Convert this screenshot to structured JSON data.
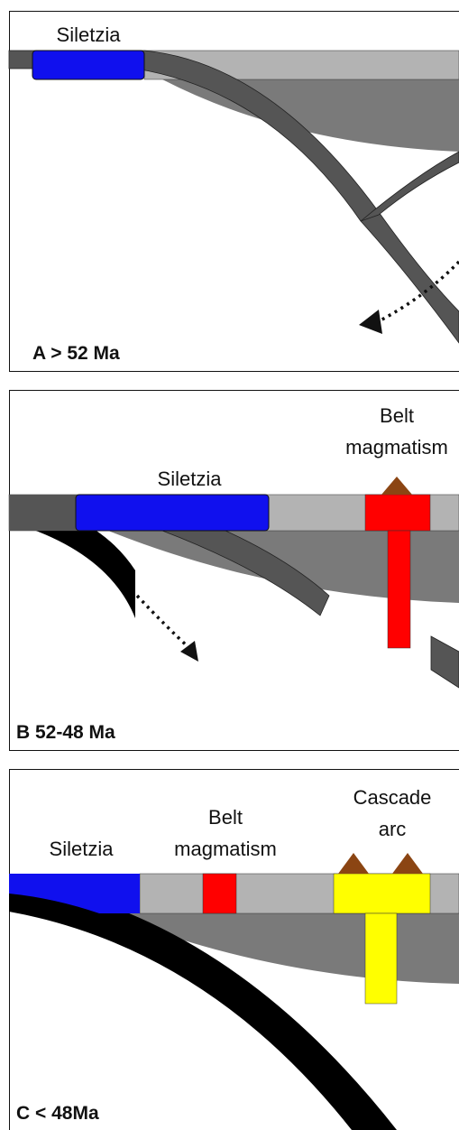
{
  "panels": [
    {
      "label": "A > 52 Ma",
      "blocks": [
        {
          "name": "Siletzia"
        }
      ]
    },
    {
      "label": "B 52-48 Ma",
      "blocks": [
        {
          "name": "Siletzia"
        },
        {
          "name_lines": [
            "Belt",
            "magmatism"
          ]
        }
      ]
    },
    {
      "label": "C < 48Ma",
      "blocks": [
        {
          "name": "Siletzia"
        },
        {
          "name_lines": [
            "Belt",
            "magmatism"
          ]
        },
        {
          "name_lines": [
            "Cascade",
            "arc"
          ]
        }
      ]
    }
  ]
}
